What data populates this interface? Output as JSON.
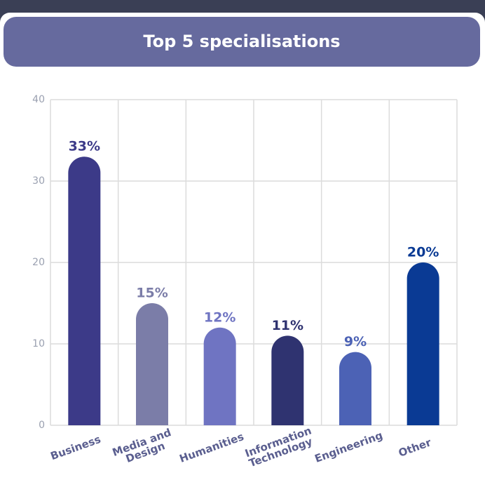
{
  "chart_data": {
    "type": "bar",
    "title": "Top 5 specialisations",
    "categories": [
      "Business",
      "Media and Design",
      "Humanities",
      "Information Technology",
      "Engineering",
      "Other"
    ],
    "values": [
      33,
      15,
      12,
      11,
      9,
      20
    ],
    "value_labels": [
      "33%",
      "15%",
      "12%",
      "11%",
      "9%",
      "20%"
    ],
    "colors": [
      "#3c3a88",
      "#7b7da8",
      "#6f74c2",
      "#2f3370",
      "#4c62b5",
      "#0a3a94"
    ],
    "ylim": [
      0,
      40
    ],
    "yticks": [
      0,
      10,
      20,
      30,
      40
    ],
    "grid": true
  }
}
